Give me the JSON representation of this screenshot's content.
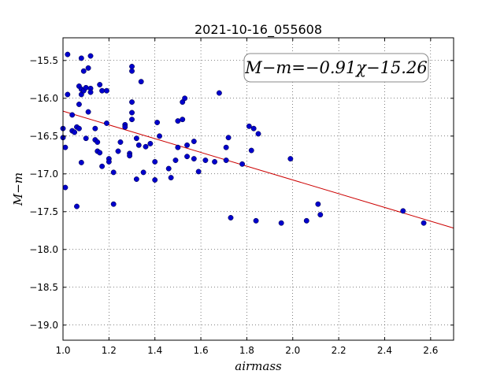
{
  "chart_data": {
    "type": "scatter",
    "title": "2021-10-16_055608",
    "xlabel": "airmass",
    "ylabel": "M−m",
    "xlim": [
      1.0,
      2.7
    ],
    "ylim": [
      -19.2,
      -15.2
    ],
    "y_inverted": true,
    "grid": true,
    "x_ticks": [
      1.0,
      1.2,
      1.4,
      1.6,
      1.8,
      2.0,
      2.2,
      2.4,
      2.6
    ],
    "x_tick_labels": [
      "1.0",
      "1.2",
      "1.4",
      "1.6",
      "1.8",
      "2.0",
      "2.2",
      "2.4",
      "2.6"
    ],
    "y_ticks": [
      -15.5,
      -16.0,
      -16.5,
      -17.0,
      -17.5,
      -18.0,
      -18.5,
      -19.0
    ],
    "y_tick_labels": [
      "−15.5",
      "−16.0",
      "−16.5",
      "−17.0",
      "−17.5",
      "−18.0",
      "−18.5",
      "−19.0"
    ],
    "annotation": "M−m=−0.91χ−15.26",
    "fit_line": {
      "slope": -0.91,
      "intercept": -15.26,
      "color": "#cc0000"
    },
    "marker_color": "#0000cc",
    "points": [
      [
        1.0,
        -16.4
      ],
      [
        1.0,
        -16.52
      ],
      [
        1.01,
        -17.18
      ],
      [
        1.01,
        -16.65
      ],
      [
        1.02,
        -15.95
      ],
      [
        1.02,
        -15.42
      ],
      [
        1.04,
        -16.43
      ],
      [
        1.04,
        -16.22
      ],
      [
        1.05,
        -16.45
      ],
      [
        1.06,
        -16.38
      ],
      [
        1.06,
        -17.43
      ],
      [
        1.07,
        -16.4
      ],
      [
        1.07,
        -16.08
      ],
      [
        1.07,
        -15.84
      ],
      [
        1.08,
        -15.47
      ],
      [
        1.08,
        -15.88
      ],
      [
        1.08,
        -15.95
      ],
      [
        1.08,
        -16.85
      ],
      [
        1.09,
        -15.64
      ],
      [
        1.09,
        -15.9
      ],
      [
        1.1,
        -15.86
      ],
      [
        1.1,
        -16.53
      ],
      [
        1.11,
        -16.18
      ],
      [
        1.11,
        -15.6
      ],
      [
        1.12,
        -15.87
      ],
      [
        1.12,
        -15.92
      ],
      [
        1.12,
        -15.44
      ],
      [
        1.14,
        -16.4
      ],
      [
        1.14,
        -16.55
      ],
      [
        1.15,
        -16.58
      ],
      [
        1.15,
        -16.7
      ],
      [
        1.16,
        -15.82
      ],
      [
        1.16,
        -16.72
      ],
      [
        1.17,
        -15.9
      ],
      [
        1.17,
        -16.9
      ],
      [
        1.19,
        -15.9
      ],
      [
        1.19,
        -16.33
      ],
      [
        1.2,
        -16.8
      ],
      [
        1.2,
        -16.84
      ],
      [
        1.22,
        -16.98
      ],
      [
        1.22,
        -17.4
      ],
      [
        1.24,
        -16.7
      ],
      [
        1.25,
        -16.58
      ],
      [
        1.27,
        -16.35
      ],
      [
        1.27,
        -16.38
      ],
      [
        1.29,
        -16.73
      ],
      [
        1.29,
        -16.76
      ],
      [
        1.3,
        -15.58
      ],
      [
        1.3,
        -15.64
      ],
      [
        1.3,
        -16.05
      ],
      [
        1.3,
        -16.19
      ],
      [
        1.3,
        -16.28
      ],
      [
        1.32,
        -16.53
      ],
      [
        1.32,
        -17.07
      ],
      [
        1.33,
        -16.62
      ],
      [
        1.34,
        -15.78
      ],
      [
        1.35,
        -16.98
      ],
      [
        1.36,
        -16.64
      ],
      [
        1.38,
        -16.6
      ],
      [
        1.4,
        -16.84
      ],
      [
        1.4,
        -17.08
      ],
      [
        1.41,
        -16.32
      ],
      [
        1.42,
        -16.5
      ],
      [
        1.46,
        -16.93
      ],
      [
        1.47,
        -17.05
      ],
      [
        1.49,
        -16.82
      ],
      [
        1.5,
        -16.65
      ],
      [
        1.5,
        -16.3
      ],
      [
        1.52,
        -16.05
      ],
      [
        1.52,
        -16.28
      ],
      [
        1.53,
        -16.0
      ],
      [
        1.54,
        -16.62
      ],
      [
        1.54,
        -16.77
      ],
      [
        1.57,
        -16.57
      ],
      [
        1.57,
        -16.8
      ],
      [
        1.59,
        -16.97
      ],
      [
        1.62,
        -16.82
      ],
      [
        1.66,
        -16.84
      ],
      [
        1.68,
        -15.93
      ],
      [
        1.71,
        -16.82
      ],
      [
        1.71,
        -16.65
      ],
      [
        1.72,
        -16.52
      ],
      [
        1.73,
        -17.58
      ],
      [
        1.78,
        -16.87
      ],
      [
        1.81,
        -16.37
      ],
      [
        1.82,
        -16.69
      ],
      [
        1.83,
        -16.4
      ],
      [
        1.84,
        -17.62
      ],
      [
        1.85,
        -16.47
      ],
      [
        1.95,
        -17.65
      ],
      [
        1.99,
        -16.8
      ],
      [
        2.06,
        -17.62
      ],
      [
        2.11,
        -17.4
      ],
      [
        2.12,
        -17.54
      ],
      [
        2.48,
        -17.49
      ],
      [
        2.57,
        -17.65
      ]
    ]
  }
}
